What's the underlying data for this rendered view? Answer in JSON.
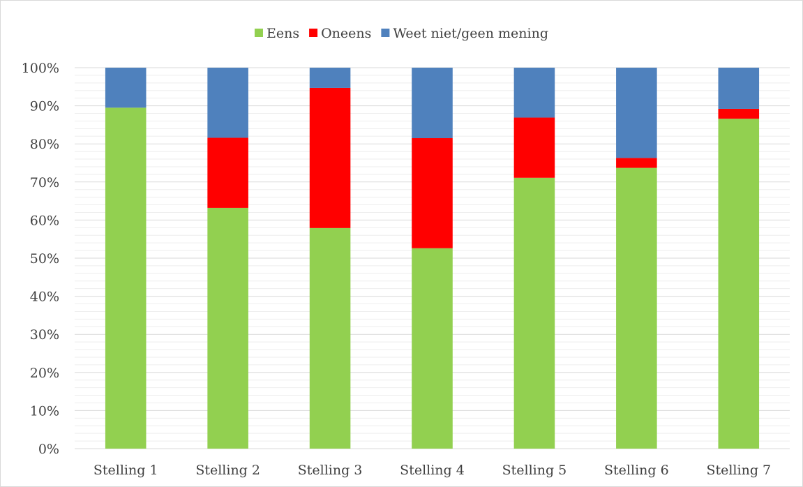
{
  "chart_data": {
    "type": "bar",
    "stacked": true,
    "percent": true,
    "categories": [
      "Stelling 1",
      "Stelling 2",
      "Stelling 3",
      "Stelling 4",
      "Stelling 5",
      "Stelling 6",
      "Stelling 7"
    ],
    "series": [
      {
        "name": "Eens",
        "color": "#92d050",
        "values": [
          89.5,
          63.2,
          57.9,
          52.6,
          71.1,
          73.7,
          86.6
        ]
      },
      {
        "name": "Oneens",
        "color": "#ff0000",
        "values": [
          0,
          18.4,
          36.8,
          28.9,
          15.8,
          2.6,
          2.6
        ]
      },
      {
        "name": "Weet niet/geen mening",
        "color": "#4f81bd",
        "values": [
          10.5,
          18.4,
          5.3,
          18.5,
          13.1,
          23.7,
          10.8
        ]
      }
    ],
    "y_ticks": [
      "0%",
      "10%",
      "20%",
      "30%",
      "40%",
      "50%",
      "60%",
      "70%",
      "80%",
      "90%",
      "100%"
    ],
    "ylim": [
      0,
      100
    ],
    "grid": true,
    "minor_grid": true,
    "legend_position": "top"
  }
}
